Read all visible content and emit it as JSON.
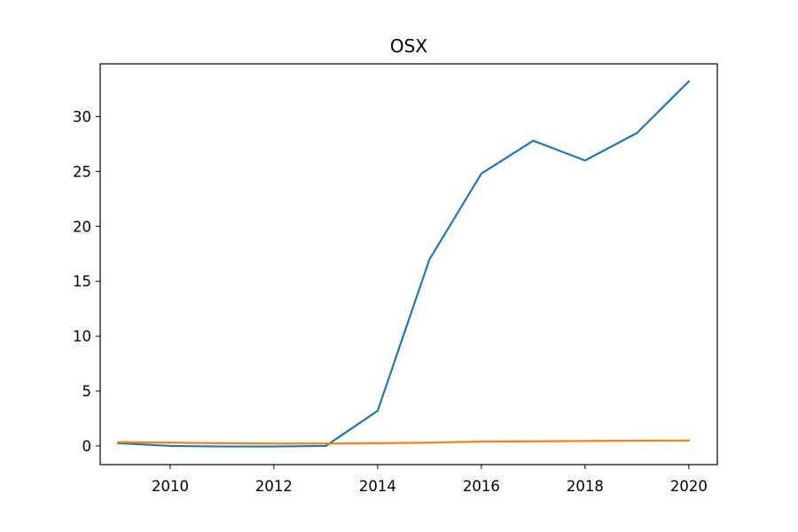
{
  "chart_data": {
    "type": "line",
    "title": "OSX",
    "xlabel": "",
    "ylabel": "",
    "xlim": [
      2008.65,
      2020.55
    ],
    "ylim": [
      -1.7,
      34.8
    ],
    "xticks": [
      2010,
      2012,
      2014,
      2016,
      2018,
      2020
    ],
    "yticks": [
      0,
      5,
      10,
      15,
      20,
      25,
      30
    ],
    "grid": false,
    "legend": "none",
    "x": [
      2009,
      2010,
      2011,
      2012,
      2013,
      2014,
      2015,
      2016,
      2017,
      2018,
      2019,
      2020
    ],
    "series": [
      {
        "color": "#1f77b4",
        "values": [
          0.25,
          0.0,
          -0.05,
          -0.05,
          0.0,
          3.2,
          17.0,
          24.8,
          27.8,
          26.0,
          28.5,
          33.2
        ]
      },
      {
        "color": "#ff7f0e",
        "values": [
          0.35,
          0.3,
          0.25,
          0.22,
          0.22,
          0.25,
          0.3,
          0.4,
          0.42,
          0.45,
          0.48,
          0.5
        ]
      }
    ]
  }
}
